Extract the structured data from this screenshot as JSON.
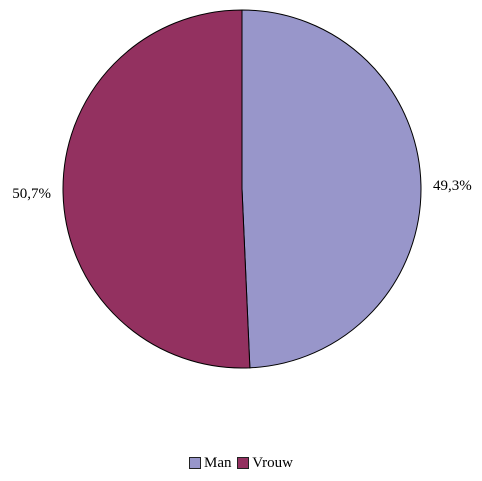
{
  "chart_data": {
    "type": "pie",
    "categories": [
      "Man",
      "Vrouw"
    ],
    "values": [
      49.3,
      50.7
    ],
    "labels": [
      "49,3%",
      "50,7%"
    ],
    "colors": [
      "#9896CA",
      "#933160"
    ],
    "legend_position": "bottom"
  }
}
